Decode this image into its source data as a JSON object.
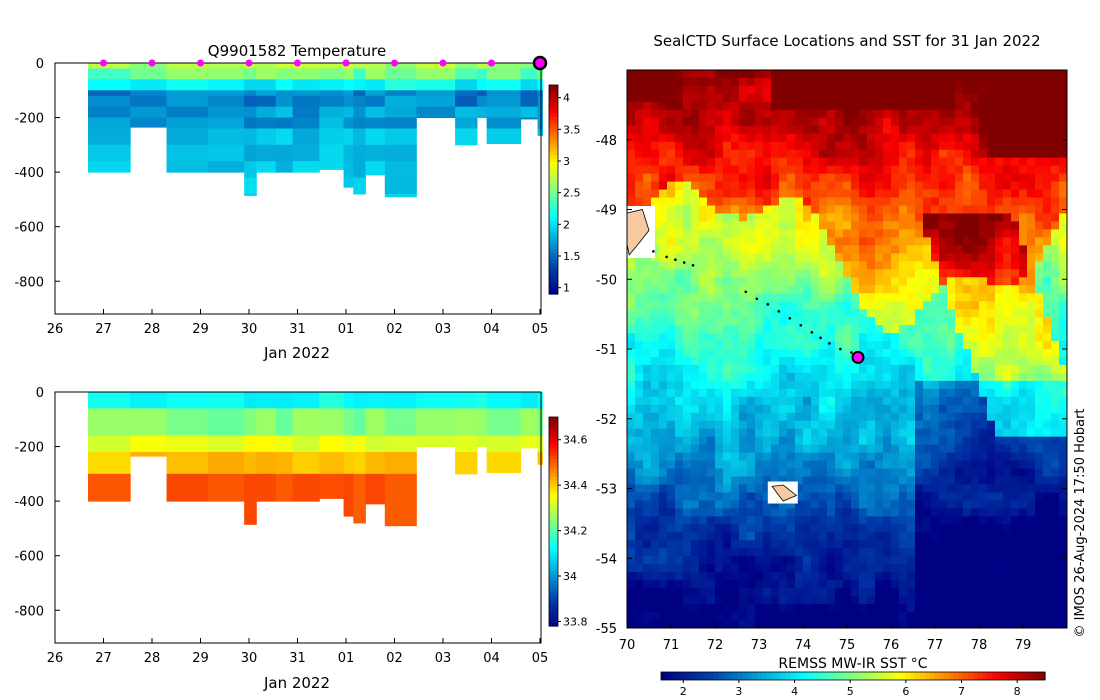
{
  "chart_data": [
    {
      "type": "heatmap",
      "title": "Q9901582  Temperature",
      "xlabel": "Jan 2022",
      "ylabel": "",
      "xticks": [
        "26",
        "27",
        "28",
        "29",
        "30",
        "31",
        "01",
        "02",
        "03",
        "04",
        "05"
      ],
      "yticks": [
        "0",
        "-200",
        "-400",
        "-600",
        "-800"
      ],
      "ylim": [
        -920,
        0
      ],
      "colorbar": {
        "ticks": [
          "1",
          "1.5",
          "2",
          "2.5",
          "3",
          "3.5",
          "4"
        ],
        "range": [
          0.9,
          4.2
        ]
      },
      "profile_markers": [
        27,
        28,
        29,
        30,
        31,
        32,
        33,
        34,
        35
      ],
      "last_profile": 36
    },
    {
      "type": "heatmap",
      "title": "",
      "xlabel": "Jan 2022",
      "ylabel": "",
      "xticks": [
        "26",
        "27",
        "28",
        "29",
        "30",
        "31",
        "01",
        "02",
        "03",
        "04",
        "05"
      ],
      "yticks": [
        "0",
        "-200",
        "-400",
        "-600",
        "-800"
      ],
      "ylim": [
        -920,
        0
      ],
      "colorbar": {
        "ticks": [
          "33.8",
          "34",
          "34.2",
          "34.4",
          "34.6"
        ],
        "range": [
          33.78,
          34.7
        ]
      }
    },
    {
      "type": "heatmap",
      "title": "SealCTD Surface Locations and SST for 31 Jan 2022",
      "xlabel": "",
      "ylabel": "",
      "xticks": [
        "70",
        "71",
        "72",
        "73",
        "74",
        "75",
        "76",
        "77",
        "78",
        "79"
      ],
      "yticks": [
        "-48",
        "-49",
        "-50",
        "-51",
        "-52",
        "-53",
        "-54",
        "-55"
      ],
      "xlim": [
        70,
        80
      ],
      "ylim": [
        -55,
        -47.0
      ],
      "colorbar": {
        "label": "REMSS MW-IR SST °C",
        "ticks": [
          "2",
          "3",
          "4",
          "5",
          "6",
          "7",
          "8"
        ],
        "range": [
          1.6,
          8.5
        ]
      },
      "track": [
        [
          70.6,
          -49.6
        ],
        [
          70.9,
          -49.68
        ],
        [
          71.1,
          -49.72
        ],
        [
          71.3,
          -49.76
        ],
        [
          71.5,
          -49.8
        ],
        [
          72.7,
          -50.18
        ],
        [
          72.95,
          -50.28
        ],
        [
          73.2,
          -50.36
        ],
        [
          73.45,
          -50.46
        ],
        [
          73.7,
          -50.56
        ],
        [
          73.95,
          -50.66
        ],
        [
          74.2,
          -50.76
        ],
        [
          74.4,
          -50.84
        ],
        [
          74.6,
          -50.92
        ],
        [
          74.85,
          -51.0
        ],
        [
          75.1,
          -51.05
        ]
      ],
      "current_position": [
        75.25,
        -51.12
      ]
    }
  ],
  "credit": "© IMOS 26-Aug-2024 17:50 Hobart"
}
